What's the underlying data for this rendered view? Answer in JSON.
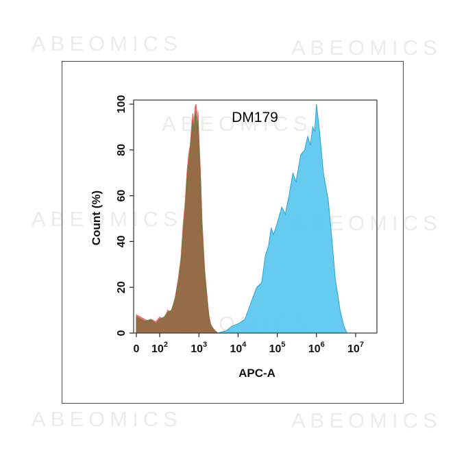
{
  "watermarks": [
    "ABEOMICS",
    "ABEOMICS",
    "ABEOMICS",
    "ABEOMICS",
    "ABEOMICS",
    "ABEOMICS",
    "ABEOMICS",
    "ABEOMICS"
  ],
  "chart_data": {
    "type": "area",
    "title": "DM179",
    "xlabel": "APC-A",
    "ylabel": "Count  (%)",
    "x_scale": "log",
    "xlim": [
      0,
      10000000
    ],
    "ylim": [
      0,
      100
    ],
    "x_ticks": [
      {
        "value": 0,
        "base": "0",
        "exp": ""
      },
      {
        "value": 100,
        "base": "10",
        "exp": "2"
      },
      {
        "value": 1000,
        "base": "10",
        "exp": "3"
      },
      {
        "value": 10000,
        "base": "10",
        "exp": "4"
      },
      {
        "value": 100000,
        "base": "10",
        "exp": "5"
      },
      {
        "value": 1000000,
        "base": "10",
        "exp": "6"
      },
      {
        "value": 10000000,
        "base": "10",
        "exp": "7"
      }
    ],
    "y_ticks": [
      "0",
      "20",
      "40",
      "60",
      "80",
      "100"
    ],
    "y_tick_values": [
      0,
      20,
      40,
      60,
      80,
      100
    ],
    "grid": false,
    "legend": "none",
    "series": [
      {
        "color": "#f06a6a",
        "fill": "#e86b6b",
        "x": [
          0,
          20,
          40,
          60,
          80,
          100,
          130,
          160,
          200,
          250,
          300,
          350,
          400,
          450,
          500,
          550,
          600,
          650,
          700,
          750,
          800,
          850,
          900,
          950,
          1000,
          1100,
          1200,
          1400,
          1600,
          1800,
          2000,
          2300,
          2600,
          3000
        ],
        "y": [
          8,
          5,
          4,
          6,
          5,
          7,
          6,
          10,
          9,
          16,
          24,
          33,
          48,
          58,
          71,
          78,
          82,
          90,
          96,
          92,
          99,
          100,
          91,
          97,
          86,
          70,
          50,
          28,
          17,
          8,
          4,
          2,
          1,
          0
        ]
      },
      {
        "color": "#6a7a3a",
        "fill": "#7a6a3a",
        "x": [
          0,
          20,
          40,
          60,
          80,
          100,
          130,
          160,
          200,
          250,
          300,
          350,
          400,
          450,
          500,
          550,
          600,
          650,
          700,
          750,
          800,
          850,
          900,
          950,
          1000,
          1100,
          1200,
          1400,
          1600,
          1800,
          2000,
          2300,
          2600,
          3000
        ],
        "y": [
          7,
          4,
          5,
          6,
          4,
          6,
          7,
          9,
          10,
          15,
          22,
          31,
          44,
          55,
          68,
          74,
          80,
          86,
          93,
          88,
          95,
          97,
          87,
          93,
          82,
          66,
          46,
          26,
          15,
          7,
          3,
          2,
          1,
          0
        ]
      },
      {
        "color": "#2ea8d8",
        "fill": "#5ec8ee",
        "x": [
          3000,
          5000,
          7000,
          10000,
          15000,
          20000,
          30000,
          40000,
          50000,
          60000,
          70000,
          80000,
          100000,
          130000,
          160000,
          200000,
          250000,
          300000,
          400000,
          500000,
          600000,
          700000,
          800000,
          900000,
          1000000,
          1200000,
          1500000,
          2000000,
          2500000,
          3000000,
          4000000,
          5000000,
          6000000
        ],
        "y": [
          0,
          1,
          3,
          4,
          6,
          12,
          20,
          22,
          34,
          38,
          46,
          43,
          48,
          55,
          52,
          60,
          70,
          66,
          78,
          80,
          86,
          82,
          90,
          88,
          100,
          88,
          70,
          58,
          40,
          24,
          10,
          3,
          0
        ]
      }
    ]
  }
}
